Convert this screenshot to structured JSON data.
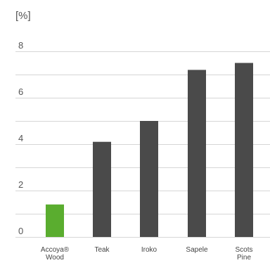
{
  "chart_data": {
    "type": "bar",
    "ylabel": "[%]",
    "categories": [
      [
        "Accoya®",
        "Wood"
      ],
      [
        "Teak"
      ],
      [
        "Iroko"
      ],
      [
        "Sapele"
      ],
      [
        "Scots",
        "Pine"
      ]
    ],
    "values": [
      1.4,
      4.1,
      5.0,
      7.2,
      7.5
    ],
    "ylim": [
      0,
      8
    ],
    "yticks": [
      0,
      2,
      4,
      6,
      8
    ],
    "gridlines": [
      0,
      1,
      2,
      3,
      4,
      5,
      6,
      7,
      8
    ],
    "colors": {
      "highlight": "#5aad2f",
      "bar": "#4a4a4a",
      "highlight_label": "#5aad2f",
      "label": "#444444",
      "grid": "#d6d6d6"
    },
    "highlight_index": 0,
    "grid": true
  }
}
